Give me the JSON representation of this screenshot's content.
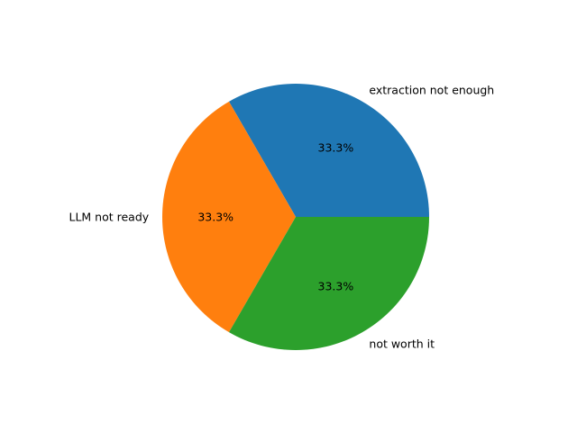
{
  "chart_data": {
    "type": "pie",
    "title": "",
    "categories": [
      "extraction not enough",
      "LLM not ready",
      "not worth it"
    ],
    "values": [
      1,
      1,
      1
    ],
    "percent_labels": [
      "33.3%",
      "33.3%",
      "33.3%"
    ],
    "colors": [
      "#1f77b4",
      "#ff7f0e",
      "#2ca02c"
    ],
    "start_angle_deg": 0,
    "direction": "counterclockwise",
    "legend": "none"
  }
}
